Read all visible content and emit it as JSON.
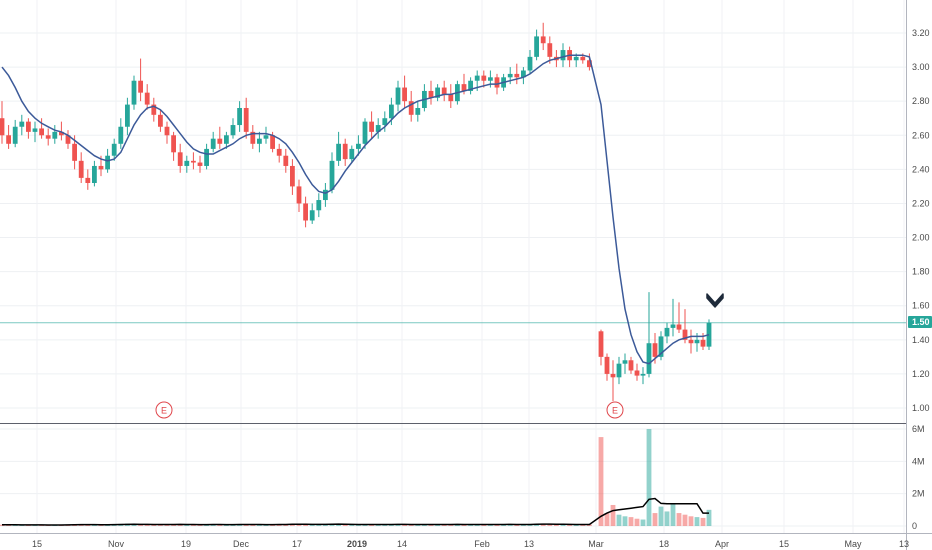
{
  "chart_data": {
    "type": "candlestick",
    "price_axis": {
      "ticks": [
        3.2,
        3.0,
        2.8,
        2.6,
        2.4,
        2.2,
        2.0,
        1.8,
        1.6,
        1.4,
        1.2,
        1.0
      ],
      "tick_labels": [
        "3.20",
        "3.00",
        "2.80",
        "2.60",
        "2.40",
        "2.20",
        "2.00",
        "1.80",
        "1.60",
        "1.40",
        "1.20",
        "1.00"
      ],
      "range": [
        0.94,
        3.3
      ]
    },
    "volume_axis": {
      "ticks": [
        6000000,
        4000000,
        2000000,
        0
      ],
      "tick_labels": [
        "6M",
        "4M",
        "2M",
        "0"
      ],
      "range": [
        0,
        6000000
      ]
    },
    "x_axis": {
      "tick_labels": [
        "15",
        "Nov",
        "19",
        "Dec",
        "17",
        "2019",
        "14",
        "Feb",
        "13",
        "Mar",
        "18",
        "Apr",
        "15",
        "May",
        "13"
      ],
      "bold_labels": [
        "2019"
      ]
    },
    "current_price": {
      "value": 1.5,
      "label": "1.50"
    },
    "earnings_markers": [
      {
        "label": "E",
        "near": "Nov 12"
      },
      {
        "label": "E",
        "near": "Mar 11"
      }
    ],
    "colors": {
      "up": "#26a69a",
      "down": "#ef5350",
      "ma": "#3c5a99",
      "volume_ma": "#000000",
      "price_line": "#26a69a"
    },
    "candles": [
      [
        2.7,
        2.8,
        2.55,
        2.6
      ],
      [
        2.6,
        2.66,
        2.52,
        2.55
      ],
      [
        2.55,
        2.69,
        2.53,
        2.65
      ],
      [
        2.65,
        2.72,
        2.6,
        2.68
      ],
      [
        2.68,
        2.7,
        2.58,
        2.62
      ],
      [
        2.62,
        2.68,
        2.56,
        2.64
      ],
      [
        2.64,
        2.7,
        2.58,
        2.6
      ],
      [
        2.6,
        2.64,
        2.54,
        2.58
      ],
      [
        2.58,
        2.66,
        2.55,
        2.62
      ],
      [
        2.62,
        2.68,
        2.57,
        2.6
      ],
      [
        2.6,
        2.63,
        2.52,
        2.55
      ],
      [
        2.55,
        2.6,
        2.4,
        2.45
      ],
      [
        2.45,
        2.5,
        2.32,
        2.35
      ],
      [
        2.35,
        2.4,
        2.28,
        2.32
      ],
      [
        2.32,
        2.45,
        2.3,
        2.42
      ],
      [
        2.42,
        2.48,
        2.36,
        2.4
      ],
      [
        2.4,
        2.52,
        2.38,
        2.48
      ],
      [
        2.48,
        2.58,
        2.45,
        2.55
      ],
      [
        2.55,
        2.7,
        2.52,
        2.65
      ],
      [
        2.65,
        2.82,
        2.6,
        2.78
      ],
      [
        2.78,
        2.95,
        2.75,
        2.92
      ],
      [
        2.92,
        3.05,
        2.8,
        2.85
      ],
      [
        2.85,
        2.9,
        2.75,
        2.78
      ],
      [
        2.78,
        2.82,
        2.68,
        2.72
      ],
      [
        2.72,
        2.75,
        2.62,
        2.65
      ],
      [
        2.65,
        2.68,
        2.55,
        2.6
      ],
      [
        2.6,
        2.62,
        2.45,
        2.5
      ],
      [
        2.5,
        2.55,
        2.38,
        2.42
      ],
      [
        2.42,
        2.48,
        2.38,
        2.45
      ],
      [
        2.45,
        2.5,
        2.4,
        2.44
      ],
      [
        2.44,
        2.48,
        2.38,
        2.42
      ],
      [
        2.42,
        2.55,
        2.4,
        2.52
      ],
      [
        2.52,
        2.62,
        2.5,
        2.58
      ],
      [
        2.58,
        2.65,
        2.52,
        2.55
      ],
      [
        2.55,
        2.62,
        2.52,
        2.6
      ],
      [
        2.6,
        2.7,
        2.58,
        2.66
      ],
      [
        2.66,
        2.8,
        2.62,
        2.76
      ],
      [
        2.76,
        2.82,
        2.58,
        2.62
      ],
      [
        2.62,
        2.66,
        2.52,
        2.55
      ],
      [
        2.55,
        2.62,
        2.5,
        2.58
      ],
      [
        2.58,
        2.65,
        2.55,
        2.6
      ],
      [
        2.6,
        2.62,
        2.5,
        2.52
      ],
      [
        2.52,
        2.55,
        2.44,
        2.48
      ],
      [
        2.48,
        2.52,
        2.38,
        2.42
      ],
      [
        2.42,
        2.46,
        2.25,
        2.3
      ],
      [
        2.3,
        2.34,
        2.15,
        2.2
      ],
      [
        2.2,
        2.24,
        2.06,
        2.1
      ],
      [
        2.1,
        2.2,
        2.08,
        2.16
      ],
      [
        2.16,
        2.26,
        2.12,
        2.22
      ],
      [
        2.22,
        2.32,
        2.18,
        2.28
      ],
      [
        2.28,
        2.5,
        2.26,
        2.45
      ],
      [
        2.45,
        2.62,
        2.42,
        2.55
      ],
      [
        2.55,
        2.58,
        2.42,
        2.46
      ],
      [
        2.46,
        2.54,
        2.44,
        2.52
      ],
      [
        2.52,
        2.6,
        2.48,
        2.55
      ],
      [
        2.55,
        2.7,
        2.52,
        2.68
      ],
      [
        2.68,
        2.74,
        2.58,
        2.62
      ],
      [
        2.62,
        2.7,
        2.58,
        2.66
      ],
      [
        2.66,
        2.74,
        2.62,
        2.7
      ],
      [
        2.7,
        2.82,
        2.66,
        2.78
      ],
      [
        2.78,
        2.92,
        2.74,
        2.88
      ],
      [
        2.88,
        2.95,
        2.76,
        2.8
      ],
      [
        2.8,
        2.86,
        2.68,
        2.72
      ],
      [
        2.72,
        2.8,
        2.68,
        2.76
      ],
      [
        2.76,
        2.9,
        2.74,
        2.86
      ],
      [
        2.86,
        2.92,
        2.78,
        2.82
      ],
      [
        2.82,
        2.9,
        2.8,
        2.88
      ],
      [
        2.88,
        2.92,
        2.8,
        2.84
      ],
      [
        2.84,
        2.9,
        2.76,
        2.8
      ],
      [
        2.8,
        2.92,
        2.78,
        2.9
      ],
      [
        2.9,
        2.96,
        2.84,
        2.86
      ],
      [
        2.86,
        2.94,
        2.84,
        2.92
      ],
      [
        2.92,
        2.98,
        2.86,
        2.95
      ],
      [
        2.95,
        2.98,
        2.88,
        2.92
      ],
      [
        2.92,
        2.98,
        2.88,
        2.94
      ],
      [
        2.94,
        2.96,
        2.84,
        2.88
      ],
      [
        2.88,
        2.96,
        2.86,
        2.94
      ],
      [
        2.94,
        3.0,
        2.9,
        2.96
      ],
      [
        2.96,
        3.02,
        2.9,
        2.94
      ],
      [
        2.94,
        3.0,
        2.9,
        2.98
      ],
      [
        2.98,
        3.1,
        2.96,
        3.06
      ],
      [
        3.06,
        3.22,
        3.04,
        3.18
      ],
      [
        3.18,
        3.26,
        3.1,
        3.14
      ],
      [
        3.14,
        3.18,
        3.02,
        3.06
      ],
      [
        3.06,
        3.1,
        3.0,
        3.04
      ],
      [
        3.04,
        3.14,
        3.0,
        3.1
      ],
      [
        3.1,
        3.12,
        3.0,
        3.04
      ],
      [
        3.04,
        3.08,
        3.0,
        3.06
      ],
      [
        3.06,
        3.08,
        3.02,
        3.04
      ],
      [
        3.04,
        3.08,
        2.98,
        3.0
      ],
      [
        1.45,
        1.46,
        1.25,
        1.3
      ],
      [
        1.3,
        1.32,
        1.16,
        1.2
      ],
      [
        1.2,
        1.28,
        1.04,
        1.18
      ],
      [
        1.18,
        1.3,
        1.14,
        1.26
      ],
      [
        1.26,
        1.32,
        1.2,
        1.28
      ],
      [
        1.28,
        1.3,
        1.2,
        1.22
      ],
      [
        1.22,
        1.26,
        1.16,
        1.19
      ],
      [
        1.19,
        1.24,
        1.14,
        1.2
      ],
      [
        1.2,
        1.68,
        1.18,
        1.38
      ],
      [
        1.38,
        1.44,
        1.26,
        1.3
      ],
      [
        1.3,
        1.45,
        1.28,
        1.42
      ],
      [
        1.42,
        1.5,
        1.38,
        1.47
      ],
      [
        1.47,
        1.64,
        1.42,
        1.49
      ],
      [
        1.49,
        1.62,
        1.44,
        1.46
      ],
      [
        1.46,
        1.58,
        1.38,
        1.4
      ],
      [
        1.4,
        1.46,
        1.32,
        1.38
      ],
      [
        1.38,
        1.44,
        1.33,
        1.4
      ],
      [
        1.4,
        1.44,
        1.34,
        1.36
      ],
      [
        1.36,
        1.52,
        1.34,
        1.5
      ]
    ],
    "volumes": [
      80000,
      60000,
      90000,
      70000,
      50000,
      60000,
      70000,
      60000,
      50000,
      55000,
      90000,
      120000,
      100000,
      70000,
      80000,
      60000,
      90000,
      100000,
      130000,
      150000,
      120000,
      90000,
      100000,
      80000,
      70000,
      90000,
      110000,
      120000,
      80000,
      60000,
      70000,
      90000,
      100000,
      80000,
      70000,
      90000,
      110000,
      120000,
      90000,
      80000,
      70000,
      90000,
      100000,
      110000,
      130000,
      120000,
      90000,
      80000,
      100000,
      110000,
      130000,
      120000,
      90000,
      80000,
      90000,
      100000,
      90000,
      80000,
      90000,
      110000,
      120000,
      100000,
      90000,
      80000,
      100000,
      90000,
      80000,
      90000,
      100000,
      110000,
      90000,
      80000,
      100000,
      90000,
      80000,
      90000,
      100000,
      110000,
      90000,
      80000,
      100000,
      130000,
      150000,
      120000,
      90000,
      100000,
      90000,
      80000,
      70000,
      90000,
      5500000,
      800000,
      1300000,
      700000,
      600000,
      550000,
      450000,
      400000,
      6000000,
      800000,
      1200000,
      900000,
      1400000,
      800000,
      700000,
      600000,
      550000,
      500000,
      1000000
    ],
    "moving_average": [
      3.0,
      2.95,
      2.88,
      2.8,
      2.74,
      2.7,
      2.67,
      2.65,
      2.63,
      2.62,
      2.6,
      2.57,
      2.54,
      2.51,
      2.48,
      2.46,
      2.45,
      2.46,
      2.5,
      2.58,
      2.66,
      2.72,
      2.76,
      2.77,
      2.75,
      2.71,
      2.66,
      2.61,
      2.56,
      2.52,
      2.5,
      2.49,
      2.49,
      2.51,
      2.53,
      2.55,
      2.58,
      2.6,
      2.61,
      2.61,
      2.61,
      2.6,
      2.58,
      2.55,
      2.5,
      2.44,
      2.37,
      2.31,
      2.27,
      2.26,
      2.28,
      2.33,
      2.39,
      2.44,
      2.49,
      2.54,
      2.58,
      2.62,
      2.65,
      2.69,
      2.73,
      2.76,
      2.78,
      2.8,
      2.81,
      2.82,
      2.83,
      2.84,
      2.84,
      2.85,
      2.86,
      2.87,
      2.88,
      2.89,
      2.9,
      2.9,
      2.91,
      2.92,
      2.93,
      2.94,
      2.96,
      2.99,
      3.02,
      3.04,
      3.05,
      3.06,
      3.07,
      3.07,
      3.07,
      3.06,
      2.78,
      2.45,
      2.12,
      1.82,
      1.58,
      1.43,
      1.33,
      1.27,
      1.26,
      1.29,
      1.32,
      1.35,
      1.38,
      1.4,
      1.41,
      1.42,
      1.42,
      1.42,
      1.43
    ],
    "volume_ma": [
      80000,
      75000,
      75000,
      70000,
      70000,
      65000,
      65000,
      60000,
      60000,
      60000,
      70000,
      80000,
      85000,
      85000,
      85000,
      80000,
      80000,
      85000,
      90000,
      100000,
      105000,
      100000,
      100000,
      95000,
      90000,
      90000,
      95000,
      100000,
      95000,
      90000,
      85000,
      85000,
      90000,
      90000,
      85000,
      85000,
      90000,
      95000,
      95000,
      90000,
      85000,
      85000,
      90000,
      95000,
      105000,
      110000,
      105000,
      100000,
      100000,
      100000,
      110000,
      115000,
      110000,
      100000,
      95000,
      95000,
      95000,
      90000,
      90000,
      95000,
      100000,
      100000,
      95000,
      90000,
      95000,
      95000,
      90000,
      90000,
      95000,
      100000,
      95000,
      90000,
      95000,
      95000,
      90000,
      90000,
      95000,
      100000,
      95000,
      90000,
      95000,
      105000,
      115000,
      115000,
      110000,
      105000,
      100000,
      95000,
      90000,
      90000,
      600000,
      800000,
      950000,
      1000000,
      1050000,
      1100000,
      1150000,
      1200000,
      1650000,
      1700000,
      1400000,
      1380000,
      1380000,
      1380000,
      1380000,
      1380000,
      1380000,
      800000,
      800000
    ]
  }
}
